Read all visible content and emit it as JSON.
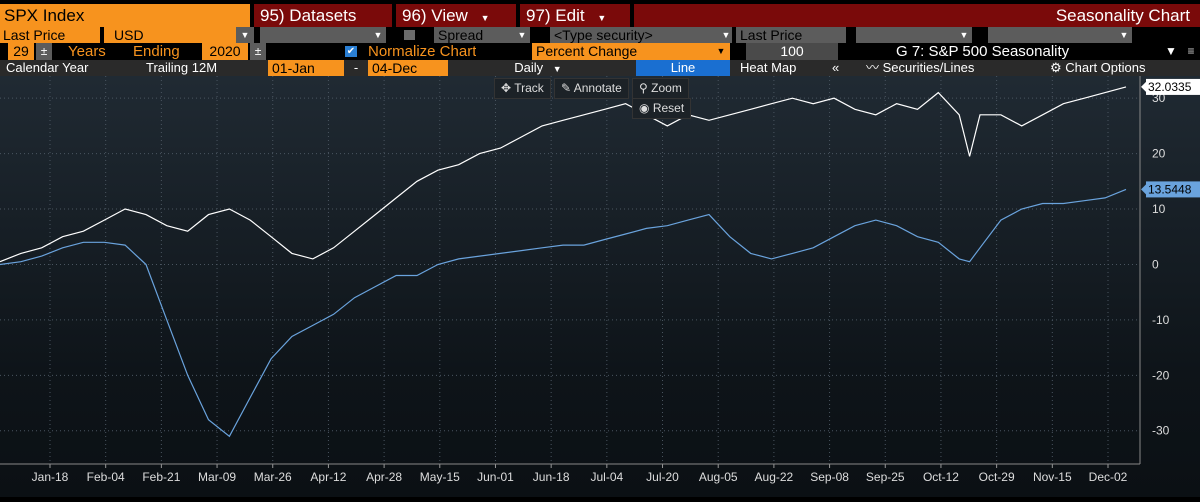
{
  "toolbar": {
    "security": "SPX Index",
    "datasets": "95) Datasets",
    "view": "96) View",
    "edit": "97) Edit",
    "title": "Seasonality Chart",
    "dropdown_arrow": "▼"
  },
  "row2": {
    "field": "Last Price",
    "currency": "USD",
    "spread_label": "Spread",
    "type_security": "<Type security>",
    "field2": "Last Price"
  },
  "row3": {
    "years": "29",
    "years_label": "Years",
    "ending_label": "Ending",
    "ending_year": "2020",
    "normalize_label": "Normalize Chart",
    "mode": "Percent Change",
    "base_value": "100",
    "group_title": "G 7: S&P 500 Seasonality",
    "normalize_checked": true
  },
  "row4": {
    "calendar_year": "Calendar Year",
    "trailing": "Trailing 12M",
    "from_date": "01-Jan",
    "dash": "-",
    "to_date": "04-Dec",
    "period": "Daily",
    "line": "Line",
    "heatmap": "Heat Map",
    "collapse": "«",
    "securities": "Securities/Lines",
    "chart_options": "Chart Options"
  },
  "tools": {
    "track": "Track",
    "annotate": "Annotate",
    "zoom": "Zoom",
    "reset": "Reset"
  },
  "colors": {
    "white_series": "#ffffff",
    "blue_series": "#6aa3dd",
    "accent": "#f7931e",
    "title_bar": "#7a0a0a"
  },
  "chart_data": {
    "type": "line",
    "x_ticks": [
      "Jan-18",
      "Feb-04",
      "Feb-21",
      "Mar-09",
      "Mar-26",
      "Apr-12",
      "Apr-28",
      "May-15",
      "Jun-01",
      "Jun-18",
      "Jul-04",
      "Jul-20",
      "Aug-05",
      "Aug-22",
      "Sep-08",
      "Sep-25",
      "Oct-12",
      "Oct-29",
      "Nov-15",
      "Dec-02"
    ],
    "y_ticks": [
      "30",
      "20",
      "10",
      "0",
      "-10",
      "-20",
      "-30"
    ],
    "ylim": [
      -36,
      34
    ],
    "series": [
      {
        "color": "#ffffff",
        "last_label": "32.0335",
        "values": [
          [
            0,
            0.5
          ],
          [
            4,
            2
          ],
          [
            8,
            3
          ],
          [
            12,
            5
          ],
          [
            16,
            6
          ],
          [
            20,
            8
          ],
          [
            24,
            10
          ],
          [
            28,
            9
          ],
          [
            32,
            7
          ],
          [
            36,
            6
          ],
          [
            40,
            9
          ],
          [
            44,
            10
          ],
          [
            48,
            8
          ],
          [
            52,
            5
          ],
          [
            56,
            2
          ],
          [
            60,
            1
          ],
          [
            64,
            3
          ],
          [
            68,
            6
          ],
          [
            72,
            9
          ],
          [
            76,
            12
          ],
          [
            80,
            15
          ],
          [
            84,
            17
          ],
          [
            88,
            18
          ],
          [
            92,
            20
          ],
          [
            96,
            21
          ],
          [
            100,
            23
          ],
          [
            104,
            25
          ],
          [
            108,
            26
          ],
          [
            112,
            27
          ],
          [
            116,
            28
          ],
          [
            120,
            29
          ],
          [
            124,
            27
          ],
          [
            128,
            25
          ],
          [
            132,
            27
          ],
          [
            136,
            26
          ],
          [
            140,
            27
          ],
          [
            144,
            28
          ],
          [
            148,
            29
          ],
          [
            152,
            30
          ],
          [
            156,
            29
          ],
          [
            160,
            30
          ],
          [
            164,
            28
          ],
          [
            168,
            27
          ],
          [
            172,
            29
          ],
          [
            176,
            28
          ],
          [
            180,
            31
          ],
          [
            184,
            27
          ],
          [
            186,
            19.5
          ],
          [
            188,
            27
          ],
          [
            192,
            27
          ],
          [
            196,
            25
          ],
          [
            200,
            27
          ],
          [
            204,
            29
          ],
          [
            208,
            30
          ],
          [
            212,
            31
          ],
          [
            216,
            32.03
          ]
        ]
      },
      {
        "color": "#6aa3dd",
        "last_label": "13.5448",
        "values": [
          [
            0,
            0
          ],
          [
            4,
            0.5
          ],
          [
            8,
            1.5
          ],
          [
            12,
            3
          ],
          [
            16,
            4
          ],
          [
            20,
            4
          ],
          [
            24,
            3.5
          ],
          [
            28,
            0
          ],
          [
            32,
            -10
          ],
          [
            36,
            -20
          ],
          [
            40,
            -28
          ],
          [
            44,
            -31
          ],
          [
            48,
            -24
          ],
          [
            52,
            -17
          ],
          [
            56,
            -13
          ],
          [
            60,
            -11
          ],
          [
            64,
            -9
          ],
          [
            68,
            -6
          ],
          [
            72,
            -4
          ],
          [
            76,
            -2
          ],
          [
            80,
            -2
          ],
          [
            84,
            0
          ],
          [
            88,
            1
          ],
          [
            92,
            1.5
          ],
          [
            96,
            2
          ],
          [
            100,
            2.5
          ],
          [
            104,
            3
          ],
          [
            108,
            3.5
          ],
          [
            112,
            3.5
          ],
          [
            116,
            4.5
          ],
          [
            120,
            5.5
          ],
          [
            124,
            6.5
          ],
          [
            128,
            7
          ],
          [
            132,
            8
          ],
          [
            136,
            9
          ],
          [
            140,
            5
          ],
          [
            144,
            2
          ],
          [
            148,
            1
          ],
          [
            152,
            2
          ],
          [
            156,
            3
          ],
          [
            160,
            5
          ],
          [
            164,
            7
          ],
          [
            168,
            8
          ],
          [
            172,
            7
          ],
          [
            176,
            5
          ],
          [
            180,
            4
          ],
          [
            184,
            1
          ],
          [
            186,
            0.5
          ],
          [
            188,
            3
          ],
          [
            192,
            8
          ],
          [
            196,
            10
          ],
          [
            200,
            11
          ],
          [
            204,
            11
          ],
          [
            208,
            11.5
          ],
          [
            212,
            12
          ],
          [
            216,
            13.54
          ]
        ]
      }
    ]
  }
}
